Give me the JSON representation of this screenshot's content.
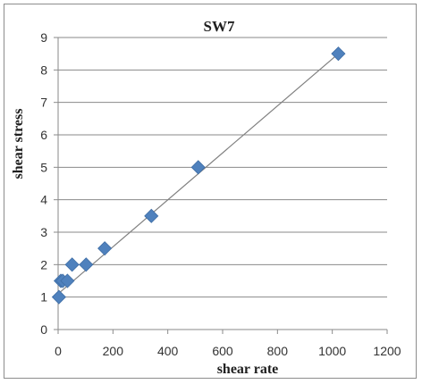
{
  "chart_data": {
    "type": "scatter",
    "title": "SW7",
    "xlabel": "shear rate",
    "ylabel": "shear stress",
    "xlim": [
      0,
      1200
    ],
    "ylim": [
      0,
      9
    ],
    "x_ticks": [
      "0",
      "200",
      "400",
      "600",
      "800",
      "1000",
      "1200"
    ],
    "y_ticks": [
      "0",
      "1",
      "2",
      "3",
      "4",
      "5",
      "6",
      "7",
      "8",
      "9"
    ],
    "grid": "horizontal",
    "legend": "none",
    "marker": "diamond",
    "marker_color": "#4f81bd",
    "trendline": {
      "type": "linear",
      "color": "#808080",
      "from": [
        0,
        1.1
      ],
      "to": [
        1022,
        8.5
      ]
    },
    "series": [
      {
        "x": [
          3,
          10,
          17,
          34,
          51,
          102,
          170,
          340,
          511,
          1022
        ],
        "y": [
          1.0,
          1.5,
          1.5,
          1.5,
          2.0,
          2.0,
          2.5,
          3.5,
          5.0,
          8.5
        ]
      }
    ]
  }
}
